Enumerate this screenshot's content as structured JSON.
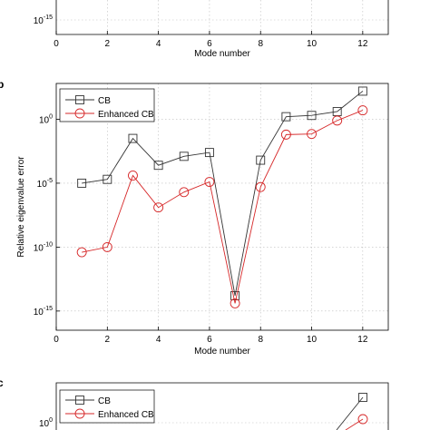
{
  "chart_data": [
    {
      "panel": "top-cropped",
      "type": "line",
      "xlabel": "Mode number",
      "xlim": [
        0,
        13
      ],
      "xticks": [
        0,
        2,
        4,
        6,
        8,
        10,
        12
      ],
      "ytick_visible": {
        "base": "10",
        "exp": "-15"
      }
    },
    {
      "panel": "middle",
      "type": "line",
      "title": "",
      "xlabel": "Mode number",
      "ylabel": "Relative eigenvalue error",
      "xlim": [
        0,
        13
      ],
      "ylim_log10": [
        -16.5,
        2.8
      ],
      "yscale": "log",
      "grid": true,
      "legend_position": "top-left",
      "xticks": [
        0,
        2,
        4,
        6,
        8,
        10,
        12
      ],
      "yticks": [
        {
          "base": "10",
          "exp": "0",
          "value_log10": 0
        },
        {
          "base": "10",
          "exp": "-5",
          "value_log10": -5
        },
        {
          "base": "10",
          "exp": "-10",
          "value_log10": -10
        },
        {
          "base": "10",
          "exp": "-15",
          "value_log10": -15
        }
      ],
      "x": [
        1,
        2,
        3,
        4,
        5,
        6,
        7,
        8,
        9,
        10,
        11,
        12
      ],
      "series": [
        {
          "name": "CB",
          "color": "#333333",
          "marker": "square",
          "log10_values": [
            -5.0,
            -4.7,
            -1.5,
            -3.6,
            -2.9,
            -2.6,
            -13.8,
            -3.2,
            0.2,
            0.3,
            0.6,
            2.2
          ]
        },
        {
          "name": "Enhanced CB",
          "color": "#d62728",
          "marker": "circle",
          "log10_values": [
            -10.4,
            -10.0,
            -4.4,
            -6.9,
            -5.7,
            -4.9,
            -14.4,
            -5.3,
            -1.2,
            -1.15,
            -0.1,
            0.7
          ]
        }
      ]
    },
    {
      "panel": "bottom-cropped",
      "type": "line",
      "legend_position": "top-left",
      "series_names": [
        "CB",
        "Enhanced CB"
      ],
      "ytick_visible": {
        "base": "10",
        "exp": "0"
      }
    }
  ]
}
